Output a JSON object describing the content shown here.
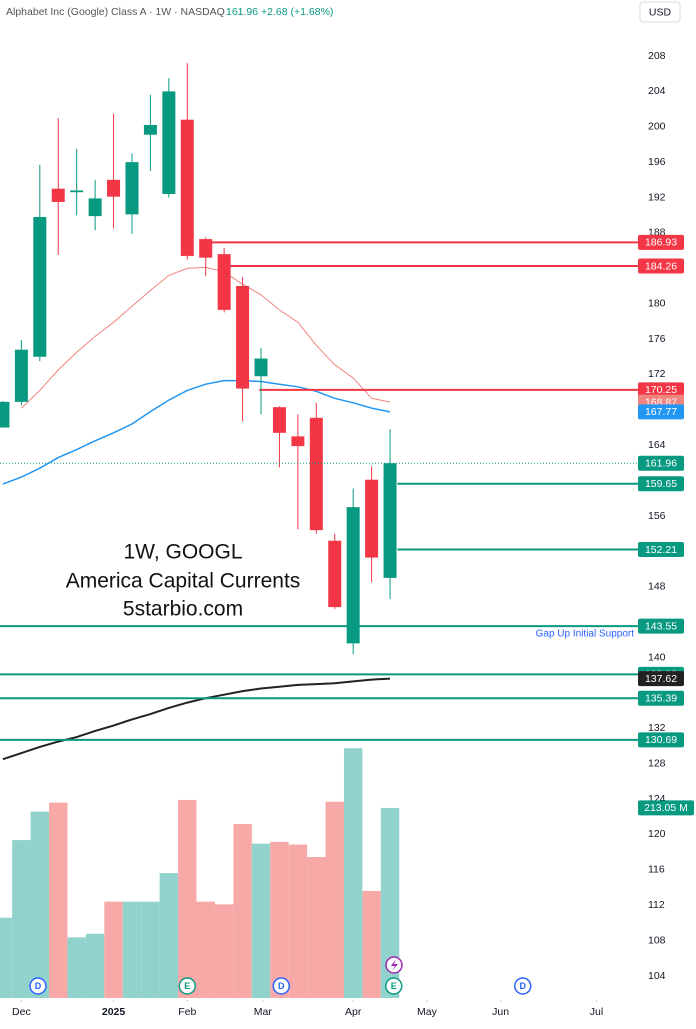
{
  "chart_data": {
    "type": "candlestick",
    "header": "Alphabet Inc (Google) Class A · 1W · NASDAQ",
    "header_quote": "161.96 +2.68 (+1.68%)",
    "currency": "USD",
    "annotations": [
      "1W, GOOGL",
      "America Capital Currents",
      "5starbio.com"
    ],
    "level_note": "Gap Up Initial Support",
    "up_color": "#089981",
    "down_color": "#f23645",
    "up_volume_color": "#92d2cc",
    "down_volume_color": "#f7a9a7",
    "xlim": [
      -0.16,
      34.56
    ],
    "xticks": [
      {
        "value": 1,
        "label": "Dec"
      },
      {
        "value": 6,
        "label": "2025"
      },
      {
        "value": 10,
        "label": "Feb"
      },
      {
        "value": 14.1,
        "label": "Mar"
      },
      {
        "value": 19,
        "label": "Apr"
      },
      {
        "value": 23,
        "label": "May"
      },
      {
        "value": 27,
        "label": "Jun"
      },
      {
        "value": 32.2,
        "label": "Jul"
      }
    ],
    "ylim": [
      101.51,
      214.33
    ],
    "yticks": [
      104,
      108,
      112,
      116,
      120,
      124,
      128,
      132,
      140,
      148,
      156,
      164,
      172,
      176,
      180,
      188,
      192,
      196,
      200,
      204,
      208
    ],
    "candles": [
      {
        "open": 166.0,
        "high": 169.0,
        "low": 166.0,
        "close": 168.9
      },
      {
        "open": 168.9,
        "high": 175.9,
        "low": 168.5,
        "close": 174.8
      },
      {
        "open": 174.0,
        "high": 195.7,
        "low": 173.5,
        "close": 189.8
      },
      {
        "open": 193.0,
        "high": 201.0,
        "low": 185.5,
        "close": 191.5
      },
      {
        "open": 192.6,
        "high": 197.5,
        "low": 190.0,
        "close": 192.8
      },
      {
        "open": 189.9,
        "high": 194.0,
        "low": 188.3,
        "close": 191.9
      },
      {
        "open": 194.0,
        "high": 201.5,
        "low": 188.5,
        "close": 192.1
      },
      {
        "open": 190.1,
        "high": 197.0,
        "low": 187.9,
        "close": 196.0
      },
      {
        "open": 199.1,
        "high": 203.6,
        "low": 195.0,
        "close": 200.2
      },
      {
        "open": 192.4,
        "high": 205.5,
        "low": 192.0,
        "close": 204.0
      },
      {
        "open": 200.8,
        "high": 207.2,
        "low": 185.0,
        "close": 185.4
      },
      {
        "open": 187.3,
        "high": 187.5,
        "low": 183.1,
        "close": 185.2
      },
      {
        "open": 185.6,
        "high": 186.3,
        "low": 179.0,
        "close": 179.3
      },
      {
        "open": 182.0,
        "high": 183.0,
        "low": 166.7,
        "close": 170.4
      },
      {
        "open": 171.8,
        "high": 175.0,
        "low": 167.5,
        "close": 173.8
      },
      {
        "open": 168.3,
        "high": 168.4,
        "low": 161.5,
        "close": 165.4
      },
      {
        "open": 165.0,
        "high": 167.5,
        "low": 154.5,
        "close": 163.9
      },
      {
        "open": 167.1,
        "high": 168.8,
        "low": 154.0,
        "close": 154.4
      },
      {
        "open": 153.2,
        "high": 154.0,
        "low": 145.5,
        "close": 145.7
      },
      {
        "open": 141.6,
        "high": 159.1,
        "low": 140.4,
        "close": 157.0
      },
      {
        "open": 160.1,
        "high": 161.6,
        "low": 148.5,
        "close": 151.3
      },
      {
        "open": 149.0,
        "high": 165.8,
        "low": 146.6,
        "close": 161.96
      }
    ],
    "volumes": [
      90,
      177,
      209,
      219,
      68,
      72,
      108,
      108,
      108,
      140,
      222,
      108,
      105,
      195,
      173,
      175,
      172,
      158,
      220,
      280,
      120,
      213.05
    ],
    "volume_ylim": [
      0,
      890
    ],
    "volume_label": "213.05 M",
    "moving_averages": [
      {
        "color": "#f0847f",
        "width": 1,
        "values": [
          null,
          168.2,
          170.2,
          172.5,
          174.5,
          176.3,
          177.9,
          179.7,
          181.5,
          183.2,
          184.0,
          184.1,
          183.6,
          182.2,
          181.0,
          179.3,
          177.9,
          175.3,
          173.1,
          171.6,
          169.3,
          168.87
        ]
      },
      {
        "color": "#2196f3",
        "width": 1.5,
        "values": [
          159.6,
          160.4,
          161.4,
          162.6,
          163.5,
          164.5,
          165.4,
          166.4,
          167.8,
          169.1,
          170.2,
          170.9,
          171.3,
          171.3,
          171.2,
          170.9,
          170.6,
          170.1,
          169.3,
          168.8,
          168.2,
          167.77
        ]
      },
      {
        "color": "#222222",
        "width": 2,
        "values": [
          128.5,
          129.2,
          129.9,
          130.5,
          131.0,
          131.7,
          132.3,
          133.0,
          133.6,
          134.3,
          134.9,
          135.4,
          135.8,
          136.2,
          136.5,
          136.7,
          136.9,
          137.0,
          137.1,
          137.3,
          137.5,
          137.62
        ]
      }
    ],
    "levels": [
      {
        "value": 186.93,
        "color": "#f23645",
        "start": 11
      },
      {
        "value": 184.26,
        "color": "#f23645",
        "start": 11.9
      },
      {
        "value": 170.25,
        "color": "#f23645",
        "start": 13.9
      },
      {
        "value": 159.65,
        "color": "#089981",
        "start": 21.4
      },
      {
        "value": 152.21,
        "color": "#089981",
        "start": 21.4
      },
      {
        "value": 143.55,
        "color": "#089981",
        "start": null
      },
      {
        "value": 138.09,
        "color": "#089981",
        "start": null
      },
      {
        "value": 135.39,
        "color": "#089981",
        "start": null
      },
      {
        "value": 130.69,
        "color": "#089981",
        "start": null
      }
    ],
    "events": [
      {
        "label": "D",
        "x": 1.9,
        "color": "#2962ff"
      },
      {
        "label": "E",
        "x": 10.0,
        "color": "#089981"
      },
      {
        "label": "D",
        "x": 15.1,
        "color": "#2962ff"
      },
      {
        "label": "E",
        "x": 21.2,
        "color": "#089981"
      },
      {
        "label": "D",
        "x": 28.2,
        "color": "#2962ff"
      }
    ]
  }
}
